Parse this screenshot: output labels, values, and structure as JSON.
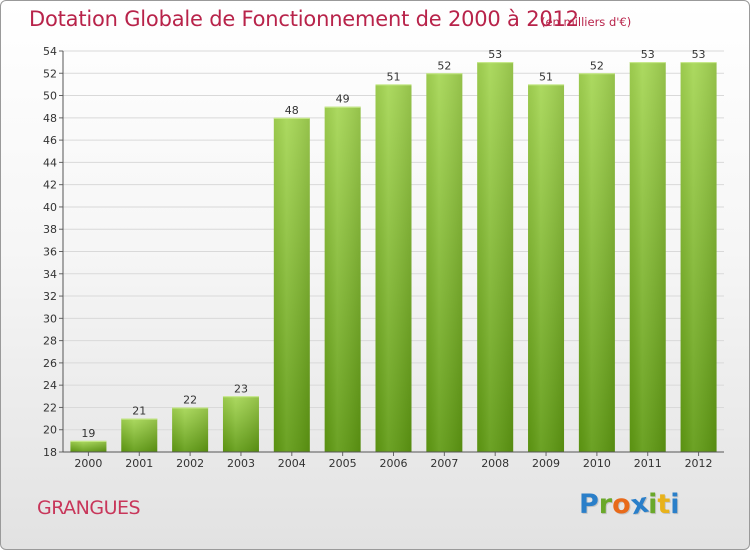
{
  "title": "Dotation Globale de Fonctionnement de 2000 à 2012",
  "unit": "(en milliers d'€)",
  "commune": "GRANGUES",
  "logo": {
    "letters": [
      "P",
      "r",
      "o",
      "x",
      "i",
      "t",
      "i"
    ],
    "colors": [
      "#2a7fc9",
      "#6aa82a",
      "#e86a1a",
      "#2a7fc9",
      "#6aa82a",
      "#e8b21a",
      "#2a7fc9"
    ]
  },
  "colors": {
    "bar_light": "#a5d653",
    "bar_dark": "#5f9a12",
    "title": "#b8234a"
  },
  "chart_data": {
    "type": "bar",
    "categories": [
      "2000",
      "2001",
      "2002",
      "2003",
      "2004",
      "2005",
      "2006",
      "2007",
      "2008",
      "2009",
      "2010",
      "2011",
      "2012"
    ],
    "values": [
      19,
      21,
      22,
      23,
      48,
      49,
      51,
      52,
      53,
      51,
      52,
      53,
      53
    ],
    "title": "Dotation Globale de Fonctionnement de 2000 à 2012",
    "ylim": [
      18,
      54
    ],
    "yticks": [
      18,
      20,
      22,
      24,
      26,
      28,
      30,
      32,
      34,
      36,
      38,
      40,
      42,
      44,
      46,
      48,
      50,
      52,
      54
    ],
    "grid": true
  }
}
